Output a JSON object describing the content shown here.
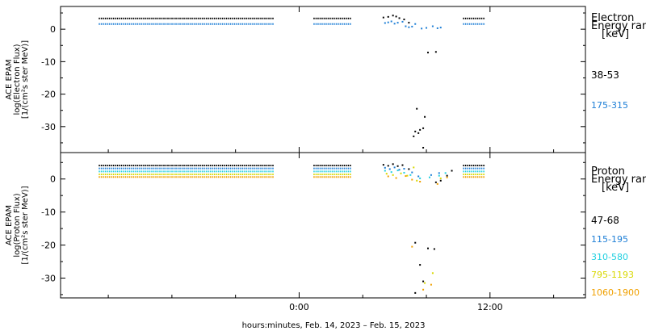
{
  "chart_data": [
    {
      "type": "scatter",
      "ylabel": [
        "ACE EPAM",
        "log(Electron Flux)",
        "[1/(cm²s ster MeV)]"
      ],
      "ylim": [
        -38,
        7
      ],
      "yticks": [
        0,
        -10,
        -20,
        -30
      ],
      "legend_title": [
        "Electron",
        "Energy ran",
        "[keV]"
      ],
      "series": [
        {
          "name": "38-53",
          "color": "#000000",
          "segments": [
            {
              "x": [
                -12.6,
                -1.6
              ],
              "y": 3.3
            },
            {
              "x": [
                0.9,
                3.3
              ],
              "y": 3.3
            },
            {
              "x": [
                10.3,
                11.7
              ],
              "y": 3.3
            }
          ],
          "scatter": [
            [
              5.3,
              3.6
            ],
            [
              5.6,
              3.8
            ],
            [
              5.9,
              4.2
            ],
            [
              6.1,
              3.9
            ],
            [
              6.3,
              3.4
            ],
            [
              6.6,
              3.0
            ],
            [
              6.9,
              2.0
            ],
            [
              7.4,
              -24.5
            ],
            [
              7.3,
              -31.5
            ],
            [
              7.2,
              -33.0
            ],
            [
              7.5,
              -32.0
            ],
            [
              7.6,
              -31.0
            ],
            [
              7.8,
              -30.5
            ],
            [
              7.9,
              -27.0
            ],
            [
              7.8,
              -36.5
            ],
            [
              8.1,
              -7.2
            ],
            [
              8.6,
              -7.0
            ]
          ]
        },
        {
          "name": "175-315",
          "color": "#1e7fd6",
          "segments": [
            {
              "x": [
                -12.6,
                -1.6
              ],
              "y": 1.6
            },
            {
              "x": [
                0.9,
                3.3
              ],
              "y": 1.6
            },
            {
              "x": [
                10.3,
                11.7
              ],
              "y": 1.6
            }
          ],
          "scatter": [
            [
              5.4,
              1.9
            ],
            [
              5.6,
              2.1
            ],
            [
              5.8,
              2.4
            ],
            [
              6.0,
              1.7
            ],
            [
              6.2,
              2.0
            ],
            [
              6.5,
              2.3
            ],
            [
              6.7,
              0.9
            ],
            [
              6.9,
              0.6
            ],
            [
              7.1,
              0.8
            ],
            [
              7.3,
              1.6
            ],
            [
              7.7,
              0.2
            ],
            [
              8.0,
              0.4
            ],
            [
              8.4,
              0.9
            ],
            [
              8.7,
              0.3
            ],
            [
              8.9,
              0.5
            ]
          ]
        }
      ]
    },
    {
      "type": "scatter",
      "ylabel": [
        "ACE EPAM",
        "log(Proton Flux)",
        "[1/(cm²s ster MeV)]"
      ],
      "ylim": [
        -36,
        8
      ],
      "yticks": [
        0,
        -10,
        -20,
        -30
      ],
      "legend_title": [
        "Proton",
        "Energy ran",
        "[keV]"
      ],
      "series": [
        {
          "name": "47-68",
          "color": "#000000",
          "segments": [
            {
              "x": [
                -12.6,
                -1.6
              ],
              "y": 4.1
            },
            {
              "x": [
                0.9,
                3.3
              ],
              "y": 4.1
            },
            {
              "x": [
                10.3,
                11.7
              ],
              "y": 4.1
            }
          ],
          "scatter": [
            [
              5.3,
              4.3
            ],
            [
              5.6,
              4.0
            ],
            [
              5.9,
              4.5
            ],
            [
              6.2,
              3.9
            ],
            [
              6.5,
              4.2
            ],
            [
              6.9,
              3.0
            ],
            [
              7.3,
              -19.3
            ],
            [
              7.6,
              -26.0
            ],
            [
              7.8,
              -31.0
            ],
            [
              7.3,
              -34.5
            ],
            [
              8.1,
              -21.0
            ],
            [
              8.5,
              -21.2
            ],
            [
              8.6,
              -1.0
            ],
            [
              8.9,
              -0.5
            ],
            [
              9.3,
              1.0
            ],
            [
              9.6,
              2.5
            ]
          ]
        },
        {
          "name": "115-195",
          "color": "#1e7fd6",
          "segments": [
            {
              "x": [
                -12.6,
                -1.6
              ],
              "y": 3.2
            },
            {
              "x": [
                0.9,
                3.3
              ],
              "y": 3.2
            },
            {
              "x": [
                10.3,
                11.7
              ],
              "y": 3.2
            }
          ],
          "scatter": [
            [
              5.4,
              3.4
            ],
            [
              5.7,
              3.0
            ],
            [
              6.0,
              3.5
            ],
            [
              6.3,
              2.8
            ],
            [
              6.6,
              3.1
            ],
            [
              7.1,
              2.0
            ],
            [
              7.5,
              0.8
            ],
            [
              8.3,
              1.2
            ],
            [
              8.8,
              1.8
            ]
          ]
        },
        {
          "name": "310-580",
          "color": "#20d0e0",
          "segments": [
            {
              "x": [
                -12.6,
                -1.6
              ],
              "y": 2.3
            },
            {
              "x": [
                0.9,
                3.3
              ],
              "y": 2.3
            },
            {
              "x": [
                10.3,
                11.7
              ],
              "y": 2.3
            }
          ],
          "scatter": [
            [
              5.4,
              2.5
            ],
            [
              5.8,
              2.1
            ],
            [
              6.2,
              2.6
            ],
            [
              6.6,
              1.9
            ],
            [
              7.0,
              1.2
            ],
            [
              7.6,
              0.2
            ],
            [
              8.2,
              0.5
            ],
            [
              8.8,
              1.0
            ],
            [
              9.2,
              1.8
            ]
          ]
        },
        {
          "name": "795-1193",
          "color": "#d8d800",
          "segments": [
            {
              "x": [
                -12.6,
                -1.6
              ],
              "y": 1.4
            },
            {
              "x": [
                0.9,
                3.3
              ],
              "y": 1.4
            },
            {
              "x": [
                10.3,
                11.7
              ],
              "y": 1.4
            }
          ],
          "scatter": [
            [
              5.5,
              1.6
            ],
            [
              5.9,
              1.2
            ],
            [
              6.4,
              1.7
            ],
            [
              6.8,
              1.0
            ],
            [
              7.2,
              3.5
            ],
            [
              7.4,
              -0.5
            ],
            [
              7.9,
              -31.5
            ],
            [
              8.4,
              -28.5
            ],
            [
              8.9,
              0.2
            ]
          ]
        },
        {
          "name": "1060-1900",
          "color": "#f0a000",
          "segments": [
            {
              "x": [
                -12.6,
                -1.6
              ],
              "y": 0.6
            },
            {
              "x": [
                0.9,
                3.3
              ],
              "y": 0.6
            },
            {
              "x": [
                10.3,
                11.7
              ],
              "y": 0.6
            }
          ],
          "scatter": [
            [
              5.6,
              0.8
            ],
            [
              6.1,
              0.3
            ],
            [
              6.7,
              0.9
            ],
            [
              7.1,
              -0.2
            ],
            [
              7.6,
              -0.8
            ],
            [
              7.1,
              -20.5
            ],
            [
              7.8,
              -33.5
            ],
            [
              8.3,
              -32.0
            ],
            [
              8.7,
              -1.5
            ],
            [
              9.3,
              0.5
            ]
          ]
        }
      ]
    }
  ],
  "x_axis": {
    "xlim": [
      -15,
      18
    ],
    "major_ticks": [
      {
        "x": 0,
        "label": "0:00"
      },
      {
        "x": 12,
        "label": "12:00"
      }
    ],
    "minor_ticks": [
      -12,
      -8,
      -4,
      4,
      8,
      16
    ],
    "title": "hours:minutes, Feb. 14, 2023 – Feb. 15, 2023"
  }
}
